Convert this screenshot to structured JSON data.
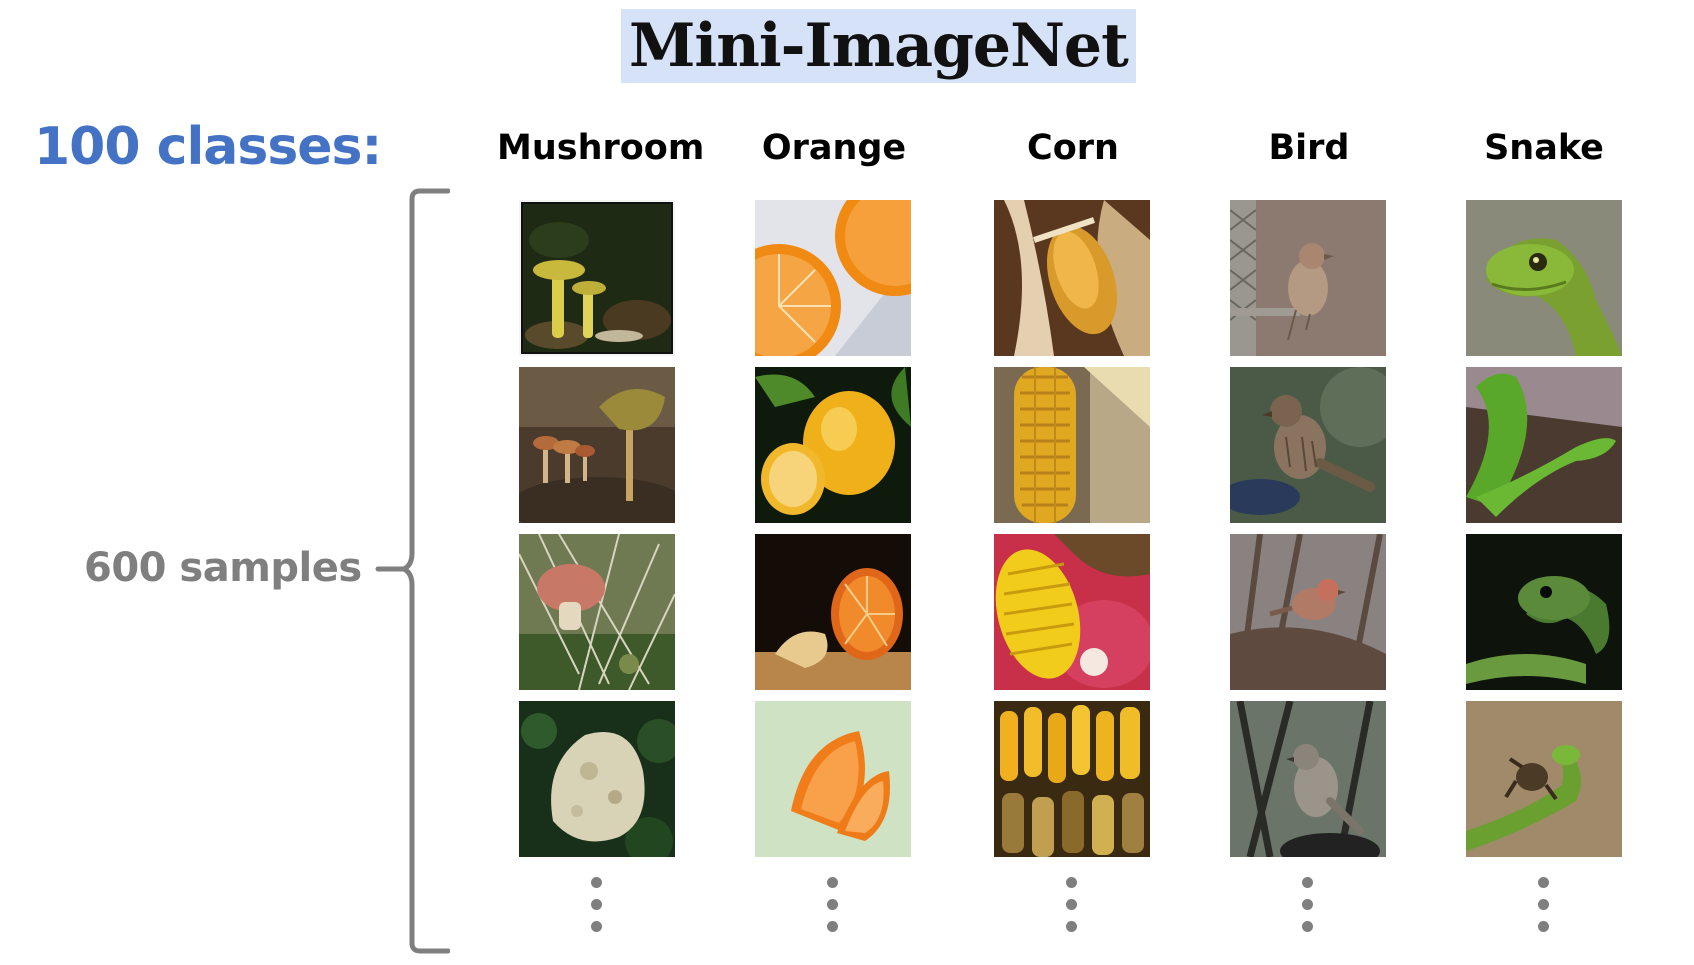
{
  "title": "Mini-ImageNet",
  "classes_label": "100 classes:",
  "samples_label": "600 samples",
  "columns": [
    {
      "label": "Mushroom"
    },
    {
      "label": "Orange"
    },
    {
      "label": "Corn"
    },
    {
      "label": "Bird"
    },
    {
      "label": "Snake"
    }
  ],
  "colors": {
    "title_highlight": "#d6e2f7",
    "classes_text": "#4472c4",
    "samples_text": "#7f7f7f",
    "bracket": "#7f7f7f"
  }
}
